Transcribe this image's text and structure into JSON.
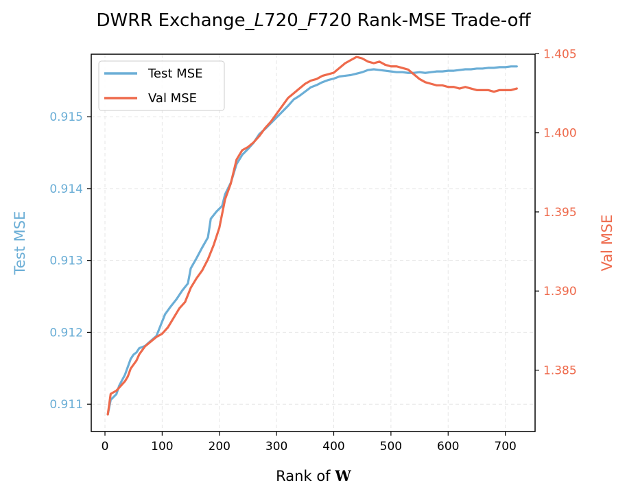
{
  "chart_data": {
    "type": "line",
    "title": {
      "prefix": "DWRR Exchange_",
      "italic1": "L",
      "mid": "720_",
      "italic2": "F",
      "suffix": "720 Rank-MSE Trade-off"
    },
    "xlabel": {
      "text": "Rank of ",
      "symbol": "W"
    },
    "ylabel_left": "Test MSE",
    "ylabel_right": "Val MSE",
    "xlim": [
      -24,
      752
    ],
    "ylim_left": [
      0.91062,
      0.91587
    ],
    "ylim_right": [
      1.38112,
      1.40497
    ],
    "x_ticks": [
      0,
      100,
      200,
      300,
      400,
      500,
      600,
      700
    ],
    "y_ticks_left": [
      0.911,
      0.912,
      0.913,
      0.914,
      0.915
    ],
    "y_ticks_right": [
      1.385,
      1.39,
      1.395,
      1.4,
      1.405
    ],
    "grid": true,
    "legend_position": "top-left",
    "colors": {
      "test": "#6baed6",
      "val": "#ee6a4c",
      "axis": "#000000",
      "grid": "#e6e6e6"
    },
    "series": [
      {
        "name": "Test MSE",
        "axis": "left",
        "points": [
          [
            5,
            0.91086
          ],
          [
            10,
            0.91106
          ],
          [
            20,
            0.91114
          ],
          [
            25,
            0.91126
          ],
          [
            35,
            0.91141
          ],
          [
            40,
            0.91152
          ],
          [
            45,
            0.91163
          ],
          [
            50,
            0.91169
          ],
          [
            55,
            0.91172
          ],
          [
            60,
            0.91178
          ],
          [
            70,
            0.91181
          ],
          [
            80,
            0.91188
          ],
          [
            90,
            0.91195
          ],
          [
            95,
            0.91205
          ],
          [
            105,
            0.91225
          ],
          [
            115,
            0.91236
          ],
          [
            125,
            0.91246
          ],
          [
            135,
            0.91258
          ],
          [
            145,
            0.91268
          ],
          [
            150,
            0.91289
          ],
          [
            160,
            0.91303
          ],
          [
            170,
            0.91318
          ],
          [
            180,
            0.91332
          ],
          [
            185,
            0.91358
          ],
          [
            195,
            0.91368
          ],
          [
            205,
            0.91376
          ],
          [
            210,
            0.91392
          ],
          [
            220,
            0.91408
          ],
          [
            225,
            0.91421
          ],
          [
            230,
            0.91434
          ],
          [
            240,
            0.91447
          ],
          [
            250,
            0.91455
          ],
          [
            260,
            0.91464
          ],
          [
            270,
            0.91476
          ],
          [
            280,
            0.91483
          ],
          [
            290,
            0.91491
          ],
          [
            300,
            0.91499
          ],
          [
            310,
            0.91507
          ],
          [
            320,
            0.91515
          ],
          [
            330,
            0.91524
          ],
          [
            340,
            0.91529
          ],
          [
            350,
            0.91535
          ],
          [
            360,
            0.91541
          ],
          [
            370,
            0.91544
          ],
          [
            380,
            0.91548
          ],
          [
            390,
            0.91551
          ],
          [
            400,
            0.91553
          ],
          [
            410,
            0.91556
          ],
          [
            420,
            0.91557
          ],
          [
            430,
            0.91558
          ],
          [
            440,
            0.9156
          ],
          [
            450,
            0.91562
          ],
          [
            460,
            0.91565
          ],
          [
            470,
            0.91566
          ],
          [
            480,
            0.91565
          ],
          [
            490,
            0.91564
          ],
          [
            500,
            0.91563
          ],
          [
            510,
            0.91562
          ],
          [
            520,
            0.91562
          ],
          [
            530,
            0.91561
          ],
          [
            540,
            0.91561
          ],
          [
            550,
            0.91562
          ],
          [
            560,
            0.91561
          ],
          [
            570,
            0.91562
          ],
          [
            580,
            0.91563
          ],
          [
            590,
            0.91563
          ],
          [
            600,
            0.91564
          ],
          [
            610,
            0.91564
          ],
          [
            620,
            0.91565
          ],
          [
            630,
            0.91566
          ],
          [
            640,
            0.91566
          ],
          [
            650,
            0.91567
          ],
          [
            660,
            0.91567
          ],
          [
            670,
            0.91568
          ],
          [
            680,
            0.91568
          ],
          [
            690,
            0.91569
          ],
          [
            700,
            0.91569
          ],
          [
            710,
            0.9157
          ],
          [
            720,
            0.9157
          ]
        ]
      },
      {
        "name": "Val MSE",
        "axis": "right",
        "points": [
          [
            5,
            1.3822
          ],
          [
            10,
            1.3835
          ],
          [
            20,
            1.3837
          ],
          [
            25,
            1.3839
          ],
          [
            35,
            1.3843
          ],
          [
            40,
            1.3846
          ],
          [
            45,
            1.3851
          ],
          [
            55,
            1.3856
          ],
          [
            60,
            1.386
          ],
          [
            70,
            1.3865
          ],
          [
            80,
            1.3868
          ],
          [
            90,
            1.3871
          ],
          [
            100,
            1.3873
          ],
          [
            110,
            1.3877
          ],
          [
            120,
            1.3883
          ],
          [
            130,
            1.3889
          ],
          [
            140,
            1.3893
          ],
          [
            150,
            1.3902
          ],
          [
            160,
            1.3908
          ],
          [
            170,
            1.3913
          ],
          [
            180,
            1.392
          ],
          [
            190,
            1.3929
          ],
          [
            200,
            1.394
          ],
          [
            210,
            1.3958
          ],
          [
            220,
            1.3968
          ],
          [
            230,
            1.3983
          ],
          [
            240,
            1.3989
          ],
          [
            250,
            1.3991
          ],
          [
            260,
            1.3994
          ],
          [
            270,
            1.3998
          ],
          [
            280,
            1.4003
          ],
          [
            290,
            1.4007
          ],
          [
            300,
            1.4012
          ],
          [
            310,
            1.4017
          ],
          [
            320,
            1.4022
          ],
          [
            330,
            1.4025
          ],
          [
            340,
            1.4028
          ],
          [
            350,
            1.4031
          ],
          [
            360,
            1.4033
          ],
          [
            370,
            1.4034
          ],
          [
            380,
            1.4036
          ],
          [
            390,
            1.4037
          ],
          [
            400,
            1.4038
          ],
          [
            410,
            1.4041
          ],
          [
            420,
            1.4044
          ],
          [
            430,
            1.4046
          ],
          [
            440,
            1.4048
          ],
          [
            450,
            1.4047
          ],
          [
            460,
            1.4045
          ],
          [
            470,
            1.4044
          ],
          [
            480,
            1.4045
          ],
          [
            490,
            1.4043
          ],
          [
            500,
            1.4042
          ],
          [
            510,
            1.4042
          ],
          [
            520,
            1.4041
          ],
          [
            530,
            1.404
          ],
          [
            540,
            1.4037
          ],
          [
            550,
            1.4034
          ],
          [
            560,
            1.4032
          ],
          [
            570,
            1.4031
          ],
          [
            580,
            1.403
          ],
          [
            590,
            1.403
          ],
          [
            600,
            1.4029
          ],
          [
            610,
            1.4029
          ],
          [
            620,
            1.4028
          ],
          [
            630,
            1.4029
          ],
          [
            640,
            1.4028
          ],
          [
            650,
            1.4027
          ],
          [
            660,
            1.4027
          ],
          [
            670,
            1.4027
          ],
          [
            680,
            1.4026
          ],
          [
            690,
            1.4027
          ],
          [
            700,
            1.4027
          ],
          [
            710,
            1.4027
          ],
          [
            720,
            1.4028
          ]
        ]
      }
    ]
  }
}
